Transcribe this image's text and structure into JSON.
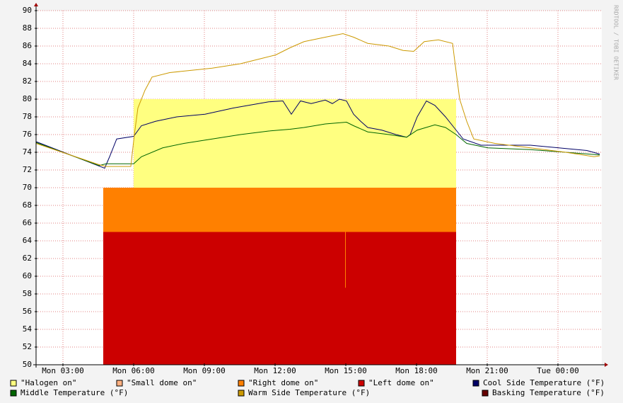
{
  "chart_data": {
    "type": "line",
    "side_text": "RRDTOOL / TOBI OETIKER",
    "xlim": [
      1.86,
      25.86
    ],
    "xticks": [
      {
        "value": 3,
        "label": "Mon 03:00"
      },
      {
        "value": 6,
        "label": "Mon 06:00"
      },
      {
        "value": 9,
        "label": "Mon 09:00"
      },
      {
        "value": 12,
        "label": "Mon 12:00"
      },
      {
        "value": 15,
        "label": "Mon 15:00"
      },
      {
        "value": 18,
        "label": "Mon 18:00"
      },
      {
        "value": 21,
        "label": "Mon 21:00"
      },
      {
        "value": 24,
        "label": "Tue 00:00"
      }
    ],
    "ylim": [
      50,
      90
    ],
    "yticks": [
      50,
      52,
      54,
      56,
      58,
      60,
      62,
      64,
      66,
      68,
      70,
      72,
      74,
      76,
      78,
      80,
      82,
      84,
      86,
      88,
      90
    ],
    "grid": true,
    "series": [
      {
        "name": "\"Halogen on\"",
        "kind": "area",
        "color": "#ffff80",
        "x": [
          6.0,
          19.68
        ],
        "values": [
          80,
          80
        ]
      },
      {
        "name": "\"Small dome on\"",
        "kind": "area",
        "color": "#ffb080"
      },
      {
        "name": "\"Right dome on\"",
        "kind": "area",
        "color": "#ff8000",
        "x": [
          4.71,
          19.68
        ],
        "values": [
          70,
          70
        ]
      },
      {
        "name": "\"Left dome on\"",
        "kind": "area",
        "color": "#cc0000",
        "x": [
          4.71,
          14.97,
          14.97,
          15.0,
          15.0,
          19.68
        ],
        "values": [
          65,
          65,
          58.7,
          58.7,
          65,
          65
        ]
      },
      {
        "name": "Cool Side Temperature (°F)",
        "kind": "line",
        "color": "#000066",
        "x": [
          1.86,
          4.77,
          4.98,
          5.28,
          6.0,
          6.33,
          6.93,
          7.83,
          9.03,
          10.23,
          11.73,
          12.33,
          12.69,
          13.08,
          13.53,
          14.13,
          14.43,
          14.73,
          15.03,
          15.33,
          15.63,
          15.93,
          16.53,
          17.13,
          17.58,
          17.73,
          18.03,
          18.42,
          18.78,
          19.23,
          19.68,
          19.98,
          20.73,
          21.93,
          22.83,
          24.03,
          25.23,
          25.77
        ],
        "values": [
          75.2,
          72.2,
          73.5,
          75.5,
          75.8,
          77,
          77.5,
          78,
          78.3,
          79,
          79.7,
          79.8,
          78.3,
          79.8,
          79.5,
          79.9,
          79.5,
          80,
          79.8,
          78.3,
          77.5,
          76.8,
          76.5,
          76,
          75.7,
          76,
          78,
          79.8,
          79.3,
          78,
          76.5,
          75.5,
          74.8,
          74.8,
          74.8,
          74.5,
          74.2,
          73.8
        ]
      },
      {
        "name": "Middle Temperature (°F)",
        "kind": "line",
        "color": "#006600",
        "x": [
          1.86,
          4.53,
          4.83,
          6.0,
          6.33,
          7.23,
          8.13,
          9.33,
          10.53,
          11.73,
          12.63,
          13.23,
          14.13,
          15.03,
          15.33,
          15.93,
          16.83,
          17.58,
          18.03,
          18.78,
          19.23,
          19.68,
          20.13,
          21.03,
          22.83,
          24.33,
          25.77
        ],
        "values": [
          75.1,
          72.5,
          72.7,
          72.7,
          73.5,
          74.5,
          75,
          75.5,
          76,
          76.4,
          76.6,
          76.8,
          77.2,
          77.4,
          77,
          76.3,
          76,
          75.7,
          76.5,
          77.1,
          76.8,
          76,
          75,
          74.5,
          74.3,
          74,
          73.7
        ]
      },
      {
        "name": "Warm Side Temperature (°F)",
        "kind": "line",
        "color": "#cc9900",
        "x": [
          1.86,
          4.53,
          4.83,
          5.88,
          6.03,
          6.18,
          6.48,
          6.78,
          7.53,
          9.33,
          10.53,
          11.43,
          12.03,
          12.63,
          13.23,
          14.13,
          14.88,
          15.33,
          15.93,
          16.83,
          17.43,
          17.88,
          18.33,
          18.93,
          19.53,
          19.59,
          19.83,
          20.13,
          20.43,
          21.33,
          22.83,
          24.33,
          25.53,
          25.77
        ],
        "values": [
          75,
          72.6,
          72.4,
          72.4,
          76,
          79,
          81,
          82.5,
          83,
          83.5,
          84,
          84.6,
          85,
          85.8,
          86.5,
          87,
          87.4,
          87,
          86.3,
          86,
          85.5,
          85.4,
          86.5,
          86.7,
          86.3,
          85,
          80,
          77.5,
          75.5,
          75,
          74.5,
          74,
          73.5,
          73.6
        ]
      },
      {
        "name": "Basking Temperature (°F)",
        "kind": "line",
        "color": "#660000"
      }
    ]
  }
}
